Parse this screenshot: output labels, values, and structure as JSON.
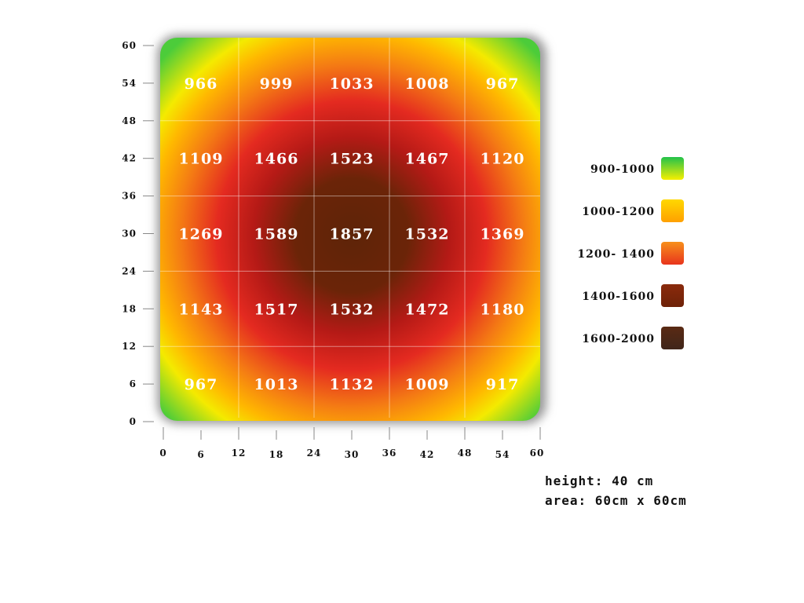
{
  "chart_data": {
    "type": "heatmap",
    "title": "",
    "xlabel": "",
    "ylabel": "",
    "xlim": [
      0,
      60
    ],
    "ylim": [
      0,
      60
    ],
    "x_ticks": [
      0,
      6,
      12,
      18,
      24,
      30,
      36,
      42,
      48,
      54,
      60
    ],
    "y_ticks": [
      0,
      6,
      12,
      18,
      24,
      30,
      36,
      42,
      48,
      54,
      60
    ],
    "grid": true,
    "cell_size": 12,
    "rows": [
      [
        966,
        999,
        1033,
        1008,
        967
      ],
      [
        1109,
        1466,
        1523,
        1467,
        1120
      ],
      [
        1269,
        1589,
        1857,
        1532,
        1369
      ],
      [
        1143,
        1517,
        1532,
        1472,
        1180
      ],
      [
        967,
        1013,
        1132,
        1009,
        917
      ]
    ],
    "legend_position": "right",
    "legend": [
      {
        "label": "900-1000",
        "color_top": "#22c24a",
        "color_bottom": "#f7ef00"
      },
      {
        "label": "1000-1200",
        "color_top": "#ffd800",
        "color_bottom": "#ffa000"
      },
      {
        "label": "1200- 1400",
        "color_top": "#f7901c",
        "color_bottom": "#e8341c"
      },
      {
        "label": "1400-1600",
        "color_top": "#8a2a0c",
        "color_bottom": "#6e2208"
      },
      {
        "label": "1600-2000",
        "color_top": "#5a2a14",
        "color_bottom": "#40261a"
      }
    ]
  },
  "notes": {
    "height": "height: 40 cm",
    "area": "area: 60cm x 60cm"
  }
}
